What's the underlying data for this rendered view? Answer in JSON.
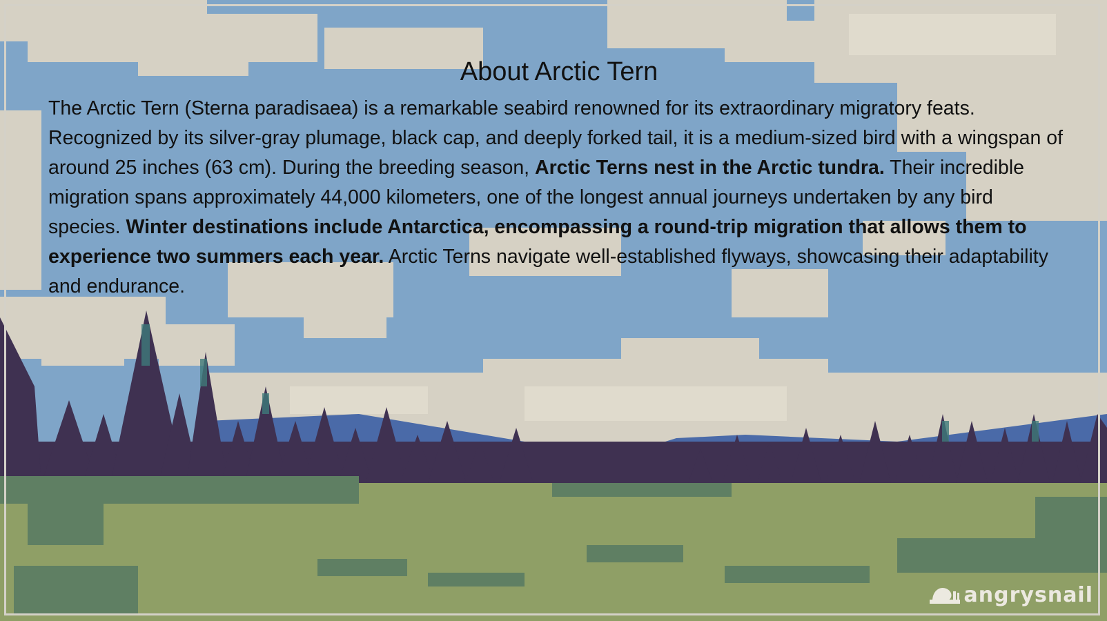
{
  "article": {
    "title": "About Arctic Tern",
    "p1": "The Arctic Tern (Sterna paradisaea) is a remarkable seabird renowned for its extraordinary migratory feats. Recognized by its silver-gray plumage, black cap, and deeply forked tail, it is a medium-sized bird with a wingspan of around 25 inches (63 cm). During the breeding season, ",
    "b1": "Arctic Terns nest in the Arctic tundra.",
    "p2": " Their incredible migration spans approximately 44,000 kilometers, one of the longest annual journeys undertaken by any bird species. ",
    "b2": "Winter destinations include Antarctica, encompassing a round-trip migration that allows them to experience two summers each year.",
    "p3": " Arctic Terns navigate well-established flyways, showcasing their adaptability and endurance."
  },
  "watermark": {
    "text": "angrysnail",
    "icon": "snail-icon"
  },
  "colors": {
    "sky": "#7fa5c8",
    "cloud": "#d6d1c4",
    "mountain": "#4a6aa8",
    "tree": "#3f3151",
    "tree_highlight": "#3f7a7a",
    "grass": "#8f9f66",
    "grass_dark": "#5f7f63"
  }
}
